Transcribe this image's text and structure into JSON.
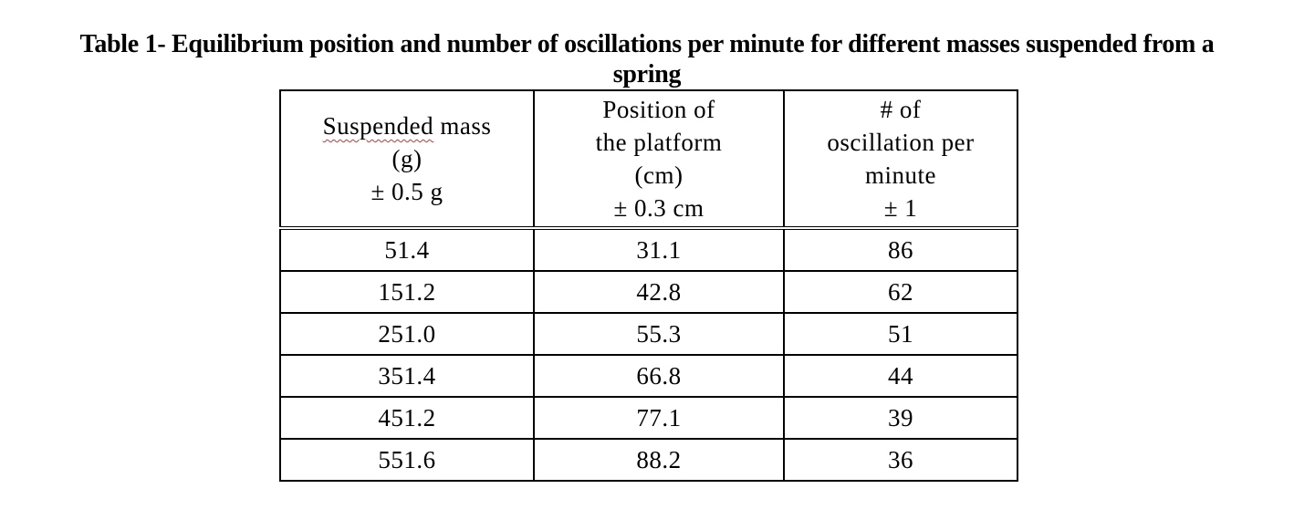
{
  "caption": {
    "line1": "Table 1- Equilibrium position and number of oscillations per minute for different masses suspended from a",
    "line2": "spring"
  },
  "table": {
    "headers": [
      {
        "lines": [
          "Suspended mass",
          "(g)",
          "± 0.5 g"
        ]
      },
      {
        "lines": [
          "Position of",
          "the platform",
          "(cm)",
          "± 0.3 cm"
        ]
      },
      {
        "lines": [
          "# of",
          "oscillation per",
          "minute",
          "± 1"
        ]
      }
    ],
    "header_squiggle_word": "Suspended",
    "header_squiggle_rest": " mass",
    "rows": [
      [
        "51.4",
        "31.1",
        "86"
      ],
      [
        "151.2",
        "42.8",
        "62"
      ],
      [
        "251.0",
        "55.3",
        "51"
      ],
      [
        "351.4",
        "66.8",
        "44"
      ],
      [
        "451.2",
        "77.1",
        "39"
      ],
      [
        "551.6",
        "88.2",
        "36"
      ]
    ]
  },
  "spellcheck_color": "#d4342c"
}
